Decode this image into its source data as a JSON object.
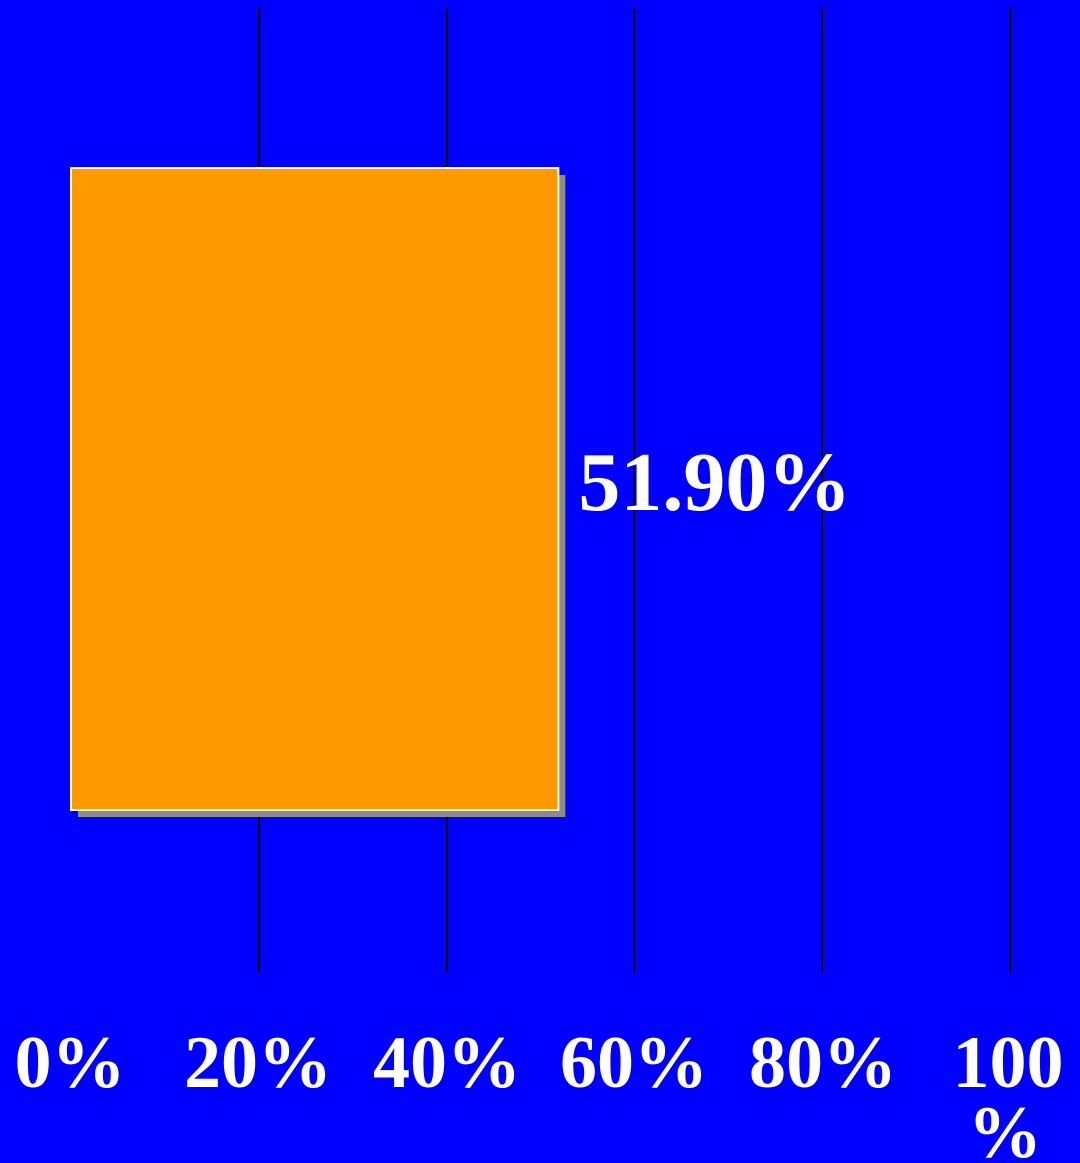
{
  "chart_data": {
    "type": "bar",
    "orientation": "horizontal",
    "categories": [
      ""
    ],
    "values": [
      51.9
    ],
    "data_labels": [
      "51.90%"
    ],
    "xlim": [
      0,
      100
    ],
    "x_ticks": [
      0,
      20,
      40,
      60,
      80,
      100
    ],
    "x_tick_labels": [
      "0%",
      "20%",
      "40%",
      "60%",
      "80%",
      "100%"
    ],
    "grid": "vertical",
    "legend": "none",
    "colors": {
      "background": "#0000ff",
      "bar": "#ff9900",
      "bar_border": "#ffffff",
      "bar_shadow": "#8c8c8c",
      "gridline": "#000000",
      "text": "#ffffff"
    }
  }
}
